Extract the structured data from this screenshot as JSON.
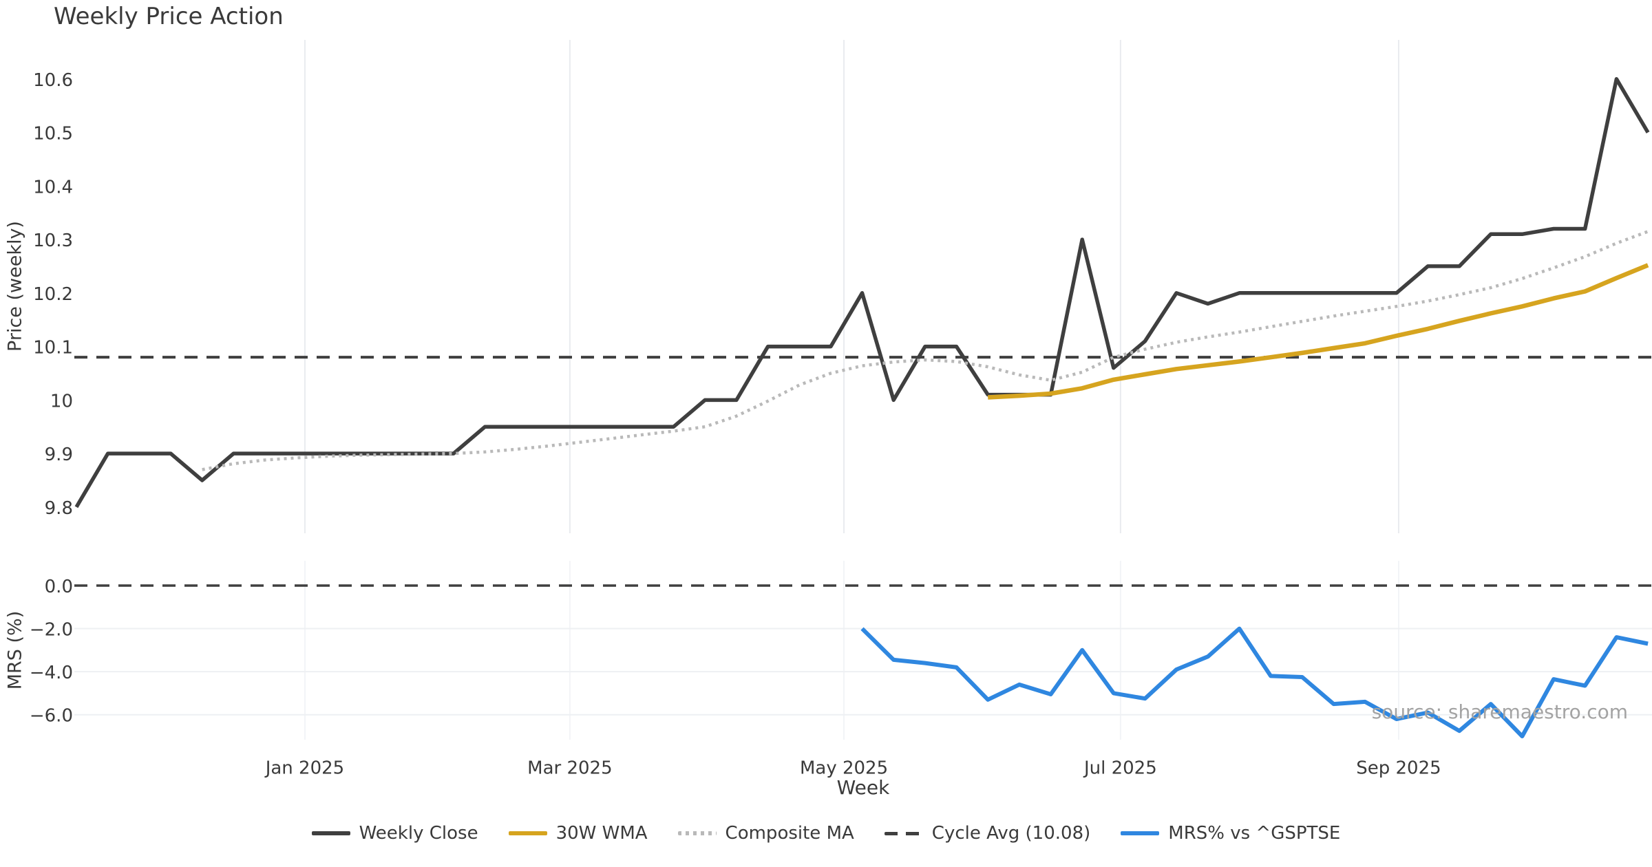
{
  "title": "Weekly Price Action",
  "watermark": "source: sharemaestro.com",
  "colors": {
    "weekly_close": "#3f3f3f",
    "wma30": "#d6a41f",
    "composite_ma": "#b9b9b9",
    "cycle_avg": "#3f3f3f",
    "mrs": "#2f87e0",
    "gridline": "#e9ebef",
    "text": "#3a3a3a",
    "watermark": "#a3a3a3"
  },
  "chart_data": {
    "type": "line",
    "title": "Weekly Price Action",
    "xlabel": "Week",
    "x_axis": {
      "xlim_weeks": [
        -0.066,
        50.13
      ],
      "month_ticks": [
        {
          "label": "Jan 2025",
          "week": 7.27
        },
        {
          "label": "Mar 2025",
          "week": 15.7
        },
        {
          "label": "May 2025",
          "week": 24.42
        },
        {
          "label": "Jul 2025",
          "week": 33.22
        },
        {
          "label": "Sep 2025",
          "week": 42.07
        }
      ]
    },
    "panels": [
      {
        "name": "price",
        "ylabel": "Price (weekly)",
        "ylim": [
          9.751,
          10.673
        ],
        "grid_horizontal": false,
        "yticks": [
          {
            "label": "10.6",
            "value": 10.6
          },
          {
            "label": "10.5",
            "value": 10.5
          },
          {
            "label": "10.4",
            "value": 10.4
          },
          {
            "label": "10.3",
            "value": 10.3
          },
          {
            "label": "10.2",
            "value": 10.2
          },
          {
            "label": "10.1",
            "value": 10.1
          },
          {
            "label": "10",
            "value": 10.0
          },
          {
            "label": "9.9",
            "value": 9.9
          },
          {
            "label": "9.8",
            "value": 9.8
          }
        ]
      },
      {
        "name": "mrs",
        "ylabel": "MRS (%)",
        "ylim": [
          -7.16,
          1.15
        ],
        "grid_horizontal": true,
        "yticks": [
          {
            "label": "0.0",
            "value": 0.0
          },
          {
            "label": "−2.0",
            "value": -2.0
          },
          {
            "label": "−4.0",
            "value": -4.0
          },
          {
            "label": "−6.0",
            "value": -6.0
          }
        ]
      }
    ],
    "series": [
      {
        "name": "Weekly Close",
        "panel": "price",
        "style": "solid",
        "color_key": "weekly_close",
        "width": 5.5,
        "start_week": 0,
        "values": [
          9.8,
          9.9,
          9.9,
          9.9,
          9.85,
          9.9,
          9.9,
          9.9,
          9.9,
          9.9,
          9.9,
          9.9,
          9.9,
          9.95,
          9.95,
          9.95,
          9.95,
          9.95,
          9.95,
          9.95,
          10.0,
          10.0,
          10.1,
          10.1,
          10.1,
          10.2,
          10.0,
          10.1,
          10.1,
          10.01,
          10.01,
          10.01,
          10.3,
          10.06,
          10.11,
          10.2,
          10.18,
          10.2,
          10.2,
          10.2,
          10.2,
          10.2,
          10.2,
          10.25,
          10.25,
          10.31,
          10.31,
          10.32,
          10.32,
          10.6,
          10.5
        ]
      },
      {
        "name": "30W WMA",
        "panel": "price",
        "style": "solid",
        "color_key": "wma30",
        "width": 6.5,
        "start_week": 29,
        "values": [
          10.005,
          10.008,
          10.012,
          10.022,
          10.038,
          10.048,
          10.058,
          10.065,
          10.072,
          10.08,
          10.088,
          10.097,
          10.106,
          10.12,
          10.133,
          10.148,
          10.162,
          10.175,
          10.19,
          10.203,
          10.228,
          10.252
        ]
      },
      {
        "name": "Composite MA",
        "panel": "price",
        "style": "dotted",
        "color_key": "composite_ma",
        "width": 4.5,
        "start_week": 4,
        "values": [
          9.87,
          9.881,
          9.888,
          9.892,
          9.895,
          9.897,
          9.898,
          9.899,
          9.9,
          9.903,
          9.908,
          9.914,
          9.921,
          9.928,
          9.935,
          9.942,
          9.95,
          9.97,
          9.998,
          10.028,
          10.05,
          10.064,
          10.071,
          10.075,
          10.072,
          10.062,
          10.047,
          10.037,
          10.052,
          10.08,
          10.095,
          10.108,
          10.118,
          10.127,
          10.137,
          10.147,
          10.157,
          10.166,
          10.175,
          10.185,
          10.197,
          10.21,
          10.227,
          10.247,
          10.268,
          10.293,
          10.315
        ]
      },
      {
        "name": "MRS% vs ^GSPTSE",
        "panel": "mrs",
        "style": "solid",
        "color_key": "mrs",
        "width": 6,
        "start_week": 25,
        "values": [
          -2.0,
          -3.45,
          -3.6,
          -3.8,
          -5.3,
          -4.6,
          -5.05,
          -3.0,
          -5.0,
          -5.25,
          -3.9,
          -3.3,
          -2.0,
          -4.2,
          -4.25,
          -5.5,
          -5.4,
          -6.2,
          -5.9,
          -6.75,
          -5.5,
          -7.0,
          -4.35,
          -4.65,
          -2.4,
          -2.7
        ]
      }
    ],
    "hlines": [
      {
        "name": "Cycle Avg",
        "panel": "price",
        "value": 10.08,
        "style": "dashed",
        "color_key": "cycle_avg",
        "width": 4
      },
      {
        "name": "MRS zero",
        "panel": "mrs",
        "value": 0.0,
        "style": "dashed",
        "color_key": "cycle_avg",
        "width": 3.5
      }
    ]
  },
  "legend": {
    "items": [
      {
        "label": "Weekly Close",
        "style": "solid",
        "color_key": "weekly_close"
      },
      {
        "label": "30W WMA",
        "style": "solid",
        "color_key": "wma30"
      },
      {
        "label": "Composite MA",
        "style": "dotted",
        "color_key": "composite_ma"
      },
      {
        "label": "Cycle Avg (10.08)",
        "style": "dashed",
        "color_key": "cycle_avg"
      },
      {
        "label": "MRS% vs ^GSPTSE",
        "style": "solid",
        "color_key": "mrs"
      }
    ]
  }
}
